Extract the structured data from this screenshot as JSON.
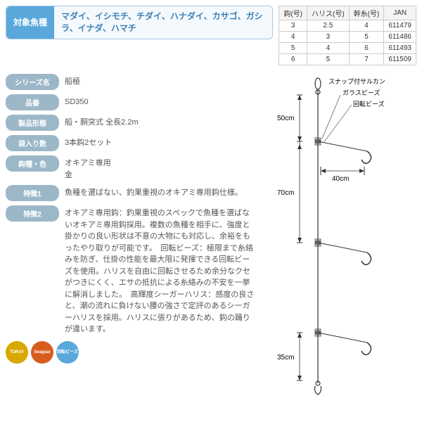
{
  "species": {
    "label": "対象魚種",
    "text": "マダイ、イシモチ、チダイ、ハナダイ、カサゴ、ガシラ、イナダ、ハマチ"
  },
  "size_table": {
    "headers": [
      "鈎(号)",
      "ハリス(号)",
      "幹糸(号)",
      "JAN"
    ],
    "rows": [
      [
        "3",
        "2.5",
        "4",
        "611479"
      ],
      [
        "4",
        "3",
        "5",
        "611486"
      ],
      [
        "5",
        "4",
        "6",
        "611493"
      ],
      [
        "6",
        "5",
        "7",
        "611509"
      ]
    ]
  },
  "specs": [
    {
      "label": "シリーズ名",
      "value": "船極"
    },
    {
      "label": "品番",
      "value": "SD350"
    },
    {
      "label": "製品形態",
      "value": "船・胴突式 全長2.2m"
    },
    {
      "label": "袋入り数",
      "value": "3本鈎2セット"
    },
    {
      "label": "鈎種・色",
      "value": "オキアミ専用\n金"
    },
    {
      "label": "特徴1",
      "value": "魚種を選ばない、釣果重視のオキアミ専用鈎仕様。"
    },
    {
      "label": "特徴2",
      "value": "オキアミ専用鈎：釣果重視のスペックで魚種を選ばないオキアミ専用鈎採用。複数の魚種を相手に、強度と掛かりの良い形状は不意の大物にも対応し、余裕をもったやり取りが可能です。　回転ビーズ：極限まで糸絡みを防ぎ、仕掛の性能を最大限に発揮できる回転ビーズを使用。ハリスを自由に回転させるため余分なクセがつきにくく、エサの抵抗による糸絡みの不安を一挙に解消しました。　高輝度シーガーハリス：感度の良さと、潮の流れに負けない腰の強さで定評のあるシーガーハリスを採用。ハリスに張りがあるため、鈎の踊りが違います。"
    }
  ],
  "diagram": {
    "labels": {
      "snap": "スナップ付サルカン",
      "glass": "ガラスビーズ",
      "kaiten": "回転ビーズ",
      "d50": "50cm",
      "d40": "40cm",
      "d70": "70cm",
      "d35": "35cm"
    }
  },
  "badges": {
    "b1": "TORAY",
    "b2": "Seaguar",
    "b3": "回転ビーズ"
  }
}
